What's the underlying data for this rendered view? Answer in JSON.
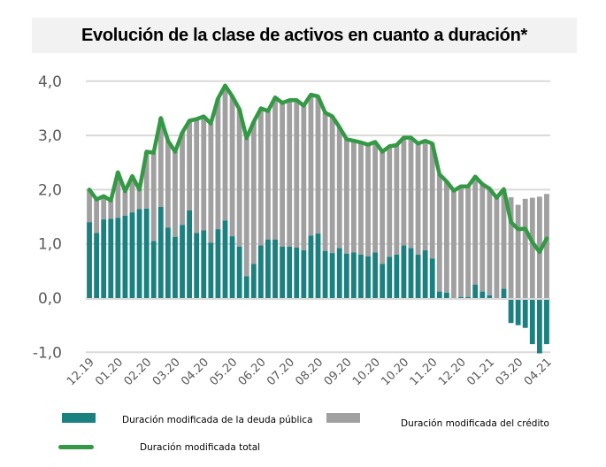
{
  "chart_data": {
    "type": "bar",
    "title": "Evolución de la clase de activos en cuanto a duración*",
    "xlabel": "",
    "ylabel": "",
    "ylim": [
      -1.0,
      4.0
    ],
    "yticks": [
      "4,0",
      "3,0",
      "2,0",
      "1,0",
      "0,0",
      "-1,0"
    ],
    "ytick_values": [
      4,
      3,
      2,
      1,
      0,
      -1
    ],
    "grid": true,
    "legend_position": "bottom",
    "xtick_labels": [
      "12.19",
      "01.20",
      "02.20",
      "03.20",
      "04.20",
      "05.20",
      "06.20",
      "07.20",
      "08.20",
      "09.20",
      "10.20",
      "10.20",
      "11.20",
      "12.20",
      "01.21",
      "03.20",
      "04.21"
    ],
    "xtick_bar_index": [
      0,
      4,
      8,
      12,
      16,
      20,
      24,
      28,
      32,
      36,
      40,
      44,
      48,
      52,
      56,
      60,
      64
    ],
    "stacked": true,
    "series": [
      {
        "name": "Duración modificada de la deuda pública",
        "kind": "bar",
        "color": "#1a8080",
        "values": [
          1.4,
          1.2,
          1.45,
          1.46,
          1.48,
          1.52,
          1.58,
          1.64,
          1.65,
          1.05,
          1.68,
          1.3,
          1.13,
          1.35,
          1.62,
          1.2,
          1.25,
          1.02,
          1.27,
          1.43,
          1.14,
          0.95,
          0.4,
          0.63,
          0.97,
          1.08,
          1.08,
          0.95,
          0.95,
          0.93,
          0.88,
          1.15,
          1.19,
          0.87,
          0.83,
          0.92,
          0.82,
          0.84,
          0.8,
          0.77,
          0.84,
          0.63,
          0.76,
          0.8,
          0.97,
          0.92,
          0.8,
          0.88,
          0.73,
          0.12,
          0.1,
          0.0,
          0.02,
          0.02,
          0.25,
          0.12,
          0.05,
          0.0,
          0.17,
          -0.46,
          -0.5,
          -0.55,
          -0.85,
          -1.02,
          -0.85
        ]
      },
      {
        "name": "Duración modificada del crédito",
        "kind": "bar",
        "color": "#a0a0a0",
        "values": [
          0.6,
          0.62,
          0.43,
          0.34,
          0.84,
          0.45,
          0.67,
          0.36,
          1.05,
          1.63,
          1.64,
          1.6,
          1.57,
          1.7,
          1.65,
          2.1,
          2.1,
          2.2,
          2.41,
          2.49,
          2.58,
          2.53,
          2.55,
          2.62,
          2.53,
          2.37,
          2.62,
          2.65,
          2.7,
          2.72,
          2.67,
          2.6,
          2.53,
          2.55,
          2.52,
          2.23,
          2.11,
          2.06,
          2.07,
          2.06,
          2.04,
          2.07,
          2.04,
          2.02,
          1.99,
          2.04,
          2.05,
          2.02,
          2.12,
          2.16,
          2.05,
          1.98,
          2.04,
          2.04,
          1.99,
          1.98,
          1.97,
          1.85,
          1.84,
          1.86,
          1.72,
          1.83,
          1.85,
          1.87,
          1.92
        ]
      },
      {
        "name": "Duración modificada total",
        "kind": "line",
        "color": "#339944",
        "values": [
          2.0,
          1.82,
          1.88,
          1.8,
          2.32,
          1.97,
          2.25,
          2.0,
          2.7,
          2.68,
          3.32,
          2.9,
          2.7,
          3.05,
          3.27,
          3.3,
          3.35,
          3.22,
          3.68,
          3.92,
          3.72,
          3.48,
          2.95,
          3.25,
          3.5,
          3.45,
          3.7,
          3.6,
          3.65,
          3.65,
          3.55,
          3.75,
          3.72,
          3.42,
          3.35,
          3.15,
          2.93,
          2.9,
          2.87,
          2.83,
          2.88,
          2.7,
          2.8,
          2.82,
          2.96,
          2.96,
          2.85,
          2.9,
          2.85,
          2.28,
          2.15,
          1.98,
          2.06,
          2.06,
          2.24,
          2.1,
          2.02,
          1.85,
          2.01,
          1.4,
          1.27,
          1.28,
          1.03,
          0.85,
          1.1
        ]
      }
    ]
  },
  "legend": {
    "items": [
      {
        "label": "Duración modificada de la deuda pública",
        "color": "#1a8080",
        "kind": "bar"
      },
      {
        "label": "Duración modificada del crédito",
        "color": "#a0a0a0",
        "kind": "bar"
      },
      {
        "label": "Duración modificada total",
        "color": "#339944",
        "kind": "line"
      }
    ]
  }
}
